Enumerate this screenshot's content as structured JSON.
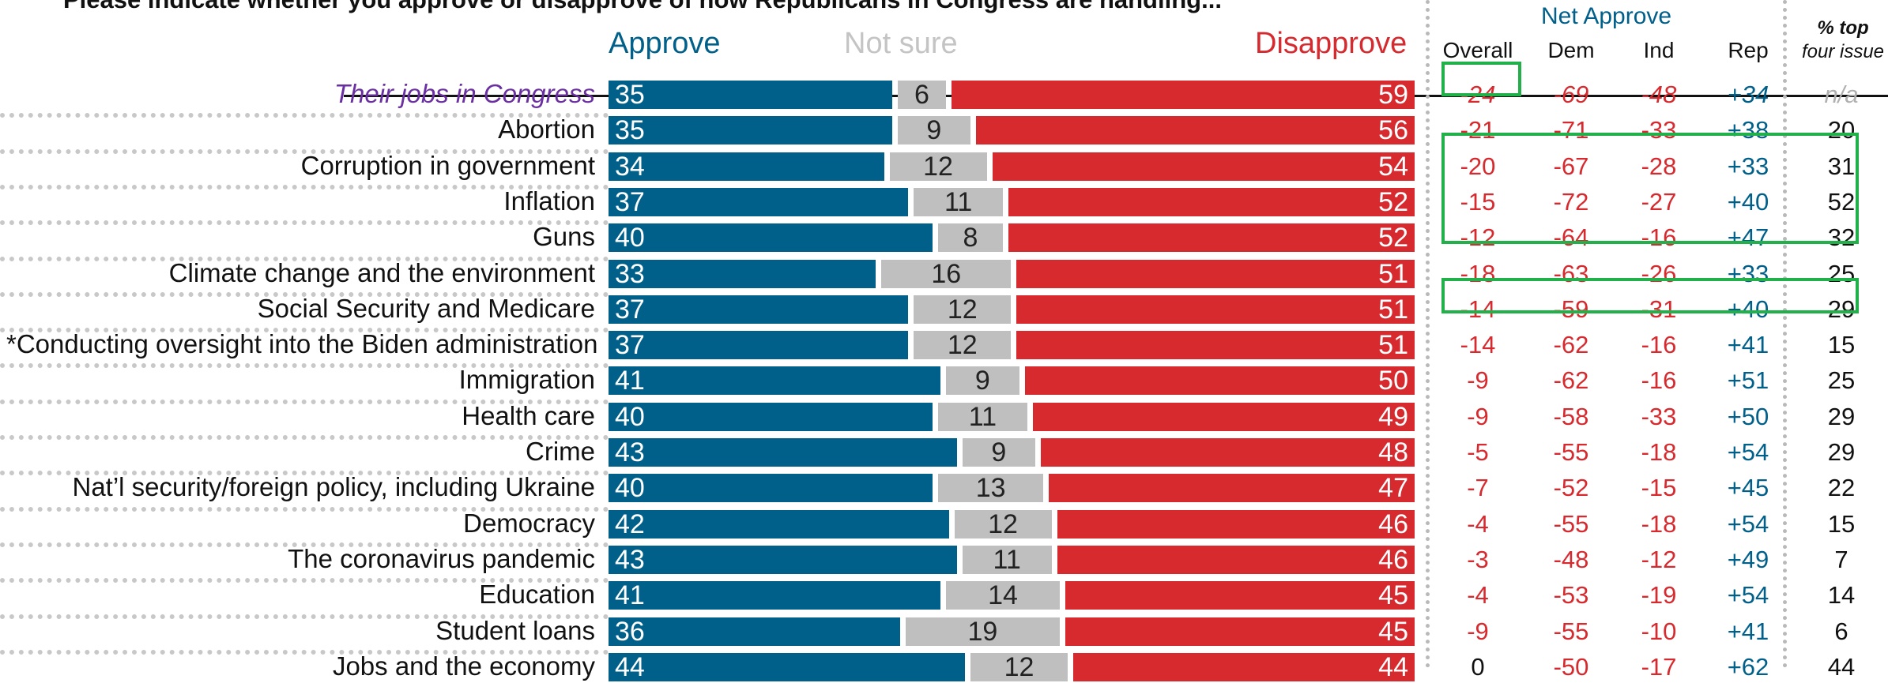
{
  "question": "Please indicate whether you approve or disapprove of how Republicans in Congress are handling...",
  "legend": {
    "approve": "Approve",
    "not_sure": "Not sure",
    "disapprove": "Disapprove"
  },
  "net_header": "Net Approve",
  "columns": {
    "overall": "Overall",
    "dem": "Dem",
    "ind": "Ind",
    "rep": "Rep",
    "top_line1": "% top",
    "top_line2": "four issue"
  },
  "colors": {
    "approve": "#00608a",
    "not_sure": "#bfbfbf",
    "disapprove": "#d62a2f",
    "net_negative": "#d62a2f",
    "net_positive": "#00608a",
    "highlight": "#22b04b",
    "first_label": "#6a2fa0"
  },
  "chart_data": {
    "type": "bar",
    "stacked": true,
    "orientation": "horizontal",
    "title": "Please indicate whether you approve or disapprove of how Republicans in Congress are handling...",
    "categories": [
      "Their jobs in Congress",
      "Abortion",
      "Corruption in government",
      "Inflation",
      "Guns",
      "Climate change and the environment",
      "Social Security and Medicare",
      "*Conducting oversight into the Biden administration",
      "Immigration",
      "Health care",
      "Crime",
      "Nat’l security/foreign policy, including Ukraine",
      "Democracy",
      "The coronavirus pandemic",
      "Education",
      "Student loans",
      "Jobs and the economy"
    ],
    "series": [
      {
        "name": "Approve",
        "values": [
          35,
          35,
          34,
          37,
          40,
          33,
          37,
          37,
          41,
          40,
          43,
          40,
          42,
          43,
          41,
          36,
          44
        ]
      },
      {
        "name": "Not sure",
        "values": [
          6,
          9,
          12,
          11,
          8,
          16,
          12,
          12,
          9,
          11,
          9,
          13,
          12,
          11,
          14,
          19,
          12
        ]
      },
      {
        "name": "Disapprove",
        "values": [
          59,
          56,
          54,
          52,
          52,
          51,
          51,
          51,
          50,
          49,
          48,
          47,
          46,
          46,
          45,
          45,
          44
        ]
      }
    ],
    "table": {
      "overall": [
        "-24",
        "-21",
        "-20",
        "-15",
        "-12",
        "-18",
        "-14",
        "-14",
        "-9",
        "-9",
        "-5",
        "-7",
        "-4",
        "-3",
        "-4",
        "-9",
        "0"
      ],
      "dem": [
        "-69",
        "-71",
        "-67",
        "-72",
        "-64",
        "-63",
        "-59",
        "-62",
        "-62",
        "-58",
        "-55",
        "-52",
        "-55",
        "-48",
        "-53",
        "-55",
        "-50"
      ],
      "ind": [
        "-48",
        "-33",
        "-28",
        "-27",
        "-16",
        "-26",
        "-31",
        "-16",
        "-16",
        "-33",
        "-18",
        "-15",
        "-18",
        "-12",
        "-19",
        "-10",
        "-17"
      ],
      "rep": [
        "+34",
        "+38",
        "+33",
        "+40",
        "+47",
        "+33",
        "+40",
        "+41",
        "+51",
        "+50",
        "+54",
        "+45",
        "+54",
        "+49",
        "+54",
        "+41",
        "+62"
      ],
      "top_issue": [
        "n/a",
        "20",
        "31",
        "52",
        "32",
        "25",
        "29",
        "15",
        "25",
        "29",
        "29",
        "22",
        "15",
        "7",
        "14",
        "6",
        "44"
      ]
    },
    "highlighted_rows": [
      "Corruption in government",
      "Inflation",
      "Guns",
      "Social Security and Medicare"
    ],
    "highlighted_cell": "Their jobs in Congress / Overall",
    "xlim": [
      0,
      100
    ],
    "grid": false,
    "legend_placement": "top"
  }
}
